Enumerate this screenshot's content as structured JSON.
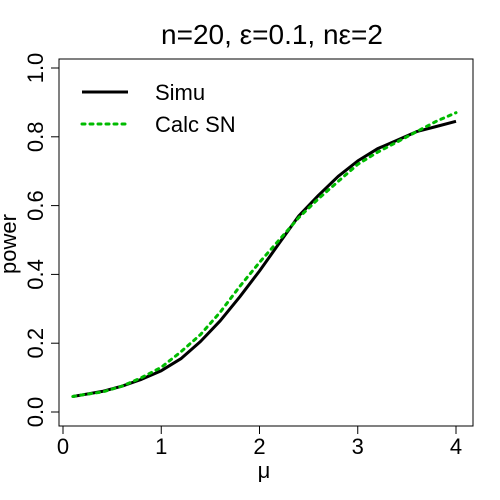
{
  "chart_data": {
    "type": "line",
    "title": "n=20, ε=0.1, nε=2",
    "xlabel": "μ",
    "ylabel": "power",
    "xlim": [
      0,
      4.1
    ],
    "ylim": [
      0,
      1.04
    ],
    "xticks": [
      0,
      1,
      2,
      3,
      4
    ],
    "yticks": [
      0.0,
      0.2,
      0.4,
      0.6,
      0.8,
      1.0
    ],
    "xtick_labels": [
      "0",
      "1",
      "2",
      "3",
      "4"
    ],
    "ytick_labels": [
      "0.0",
      "0.2",
      "0.4",
      "0.6",
      "0.8",
      "1.0"
    ],
    "grid": false,
    "legend_position": "top-left",
    "series": [
      {
        "name": "Simu",
        "color": "#000000",
        "style": "solid",
        "x": [
          0.1,
          0.2,
          0.4,
          0.6,
          0.8,
          1.0,
          1.2,
          1.4,
          1.6,
          1.8,
          2.0,
          2.2,
          2.4,
          2.6,
          2.8,
          3.0,
          3.2,
          3.4,
          3.6,
          3.8,
          4.0
        ],
        "y": [
          0.045,
          0.05,
          0.06,
          0.075,
          0.095,
          0.12,
          0.155,
          0.205,
          0.265,
          0.335,
          0.41,
          0.49,
          0.57,
          0.63,
          0.685,
          0.73,
          0.765,
          0.79,
          0.815,
          0.83,
          0.845
        ]
      },
      {
        "name": "Calc SN",
        "color": "#00BB00",
        "style": "dotted",
        "x": [
          0.1,
          0.2,
          0.4,
          0.6,
          0.8,
          1.0,
          1.2,
          1.4,
          1.6,
          1.8,
          2.0,
          2.2,
          2.4,
          2.6,
          2.8,
          3.0,
          3.2,
          3.4,
          3.6,
          3.8,
          4.0
        ],
        "y": [
          0.045,
          0.05,
          0.058,
          0.075,
          0.1,
          0.13,
          0.175,
          0.225,
          0.29,
          0.365,
          0.435,
          0.5,
          0.565,
          0.62,
          0.67,
          0.72,
          0.755,
          0.785,
          0.815,
          0.845,
          0.87
        ]
      }
    ]
  }
}
